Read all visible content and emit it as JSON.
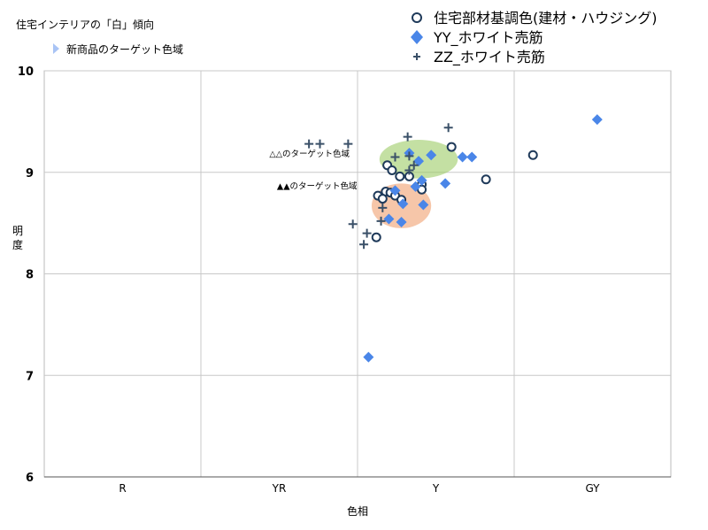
{
  "chart_data": {
    "type": "scatter",
    "title": "住宅インテリアの「白」傾向",
    "subtitle_legend": "新商品のターゲット色域",
    "xlabel": "色相",
    "ylabel": "明度",
    "x_categories": [
      "R",
      "YR",
      "Y",
      "GY"
    ],
    "xlim": [
      0,
      4
    ],
    "ylim": [
      6,
      10
    ],
    "yticks": [
      6,
      7,
      8,
      9,
      10
    ],
    "grid": true,
    "legend_position": "top-right",
    "colors": {
      "circle": "#1f3a5a",
      "diamond": "#4a86e8",
      "cross": "#3a5068",
      "green_region": "#9ccc65",
      "orange_region": "#f0a070"
    },
    "series": [
      {
        "name": "住宅部材基調色(建材・ハウジング)",
        "marker": "circle",
        "points": [
          [
            2.6,
            9.25
          ],
          [
            2.82,
            8.93
          ],
          [
            3.12,
            9.17
          ],
          [
            2.12,
            8.36
          ],
          [
            2.41,
            8.88
          ],
          [
            2.41,
            8.83
          ],
          [
            2.19,
            9.07
          ],
          [
            2.22,
            9.02
          ],
          [
            2.27,
            8.96
          ],
          [
            2.33,
            8.96
          ],
          [
            2.13,
            8.77
          ],
          [
            2.18,
            8.81
          ],
          [
            2.21,
            8.8
          ],
          [
            2.24,
            8.77
          ],
          [
            2.28,
            8.73
          ],
          [
            2.16,
            8.74
          ]
        ]
      },
      {
        "name": "YY_ホワイト売筋",
        "marker": "diamond",
        "points": [
          [
            3.53,
            9.52
          ],
          [
            2.67,
            9.15
          ],
          [
            2.73,
            9.15
          ],
          [
            2.56,
            8.89
          ],
          [
            2.37,
            8.86
          ],
          [
            2.41,
            8.92
          ],
          [
            2.33,
            9.19
          ],
          [
            2.39,
            9.11
          ],
          [
            2.47,
            9.17
          ],
          [
            2.29,
            8.69
          ],
          [
            2.42,
            8.68
          ],
          [
            2.2,
            8.54
          ],
          [
            2.28,
            8.51
          ],
          [
            2.24,
            8.82
          ],
          [
            2.07,
            7.18
          ]
        ]
      },
      {
        "name": "ZZ_ホワイト売筋",
        "marker": "cross",
        "points": [
          [
            1.69,
            9.28
          ],
          [
            1.76,
            9.28
          ],
          [
            1.94,
            9.28
          ],
          [
            2.32,
            9.35
          ],
          [
            2.58,
            9.44
          ],
          [
            2.24,
            9.15
          ],
          [
            2.33,
            9.16
          ],
          [
            2.36,
            9.07
          ],
          [
            2.33,
            9.02
          ],
          [
            2.16,
            8.65
          ],
          [
            2.15,
            8.52
          ],
          [
            1.97,
            8.49
          ],
          [
            2.06,
            8.4
          ],
          [
            2.04,
            8.29
          ]
        ]
      }
    ],
    "regions": [
      {
        "label": "△△のターゲット色域",
        "color": "green",
        "cx": 2.39,
        "cy": 9.13,
        "rx": 0.25,
        "ry": 0.19
      },
      {
        "label": "▲▲のターゲット色域",
        "color": "orange",
        "cx": 2.28,
        "cy": 8.67,
        "rx": 0.19,
        "ry": 0.22
      }
    ]
  }
}
